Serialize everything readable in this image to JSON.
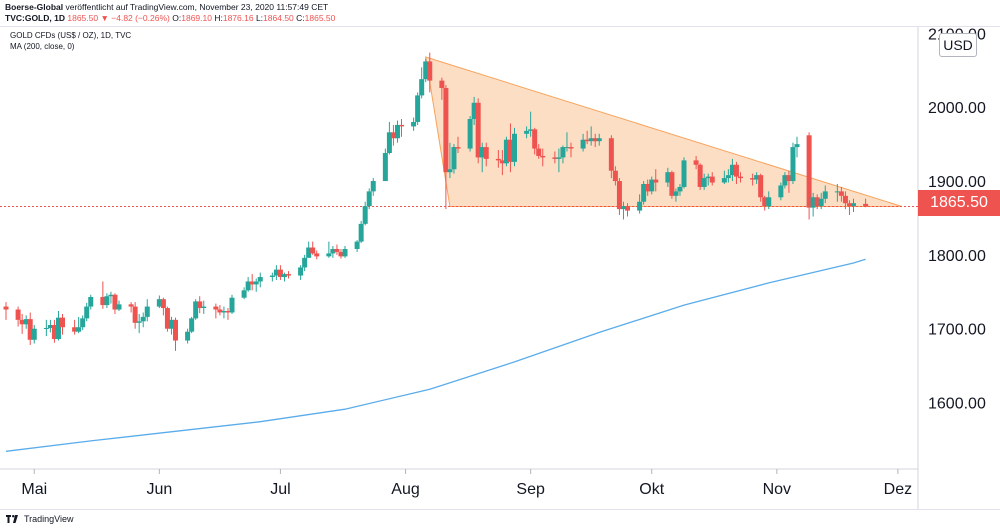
{
  "header": {
    "publisher": "Boerse-Global",
    "published_text": "veröffentlicht auf TradingView.com, November 23, 2020 11:57:49 CET",
    "symbol": "TVC:GOLD, 1D",
    "last": "1865.50",
    "change": "−4.82 (−0.26%)",
    "open_label": "O:",
    "open": "1869.10",
    "high_label": "H:",
    "high": "1876.16",
    "low_label": "L:",
    "low": "1864.50",
    "close_label": "C:",
    "close": "1865.50"
  },
  "legend": {
    "title": "GOLD CFDs (US$ / OZ), 1D, TVC",
    "indicator": "MA (200, close, 0)"
  },
  "currency": "USD",
  "current_price": "1865.50",
  "footer": {
    "brand": "TradingView"
  },
  "colors": {
    "up": "#26a69a",
    "down": "#ef5350",
    "ma": "#5aacea",
    "triangle_fill": "#fbd3b0",
    "triangle_line": "#f7a35c"
  },
  "chart_data": {
    "type": "candlestick",
    "ylim": [
      1510,
      2110
    ],
    "yticks": [
      "1600.00",
      "1700.00",
      "1800.00",
      "1900.00",
      "2000.00",
      "2100.00"
    ],
    "xticks": [
      "Mai",
      "Jun",
      "Jul",
      "Aug",
      "Sep",
      "Okt",
      "Nov",
      "Dez"
    ],
    "x_range": [
      "2020-04-24",
      "2020-12-04"
    ],
    "candles": [
      [
        "2020-04-24",
        1730,
        1736,
        1712,
        1726
      ],
      [
        "2020-04-27",
        1726,
        1730,
        1703,
        1712
      ],
      [
        "2020-04-28",
        1712,
        1720,
        1693,
        1706
      ],
      [
        "2020-04-29",
        1706,
        1718,
        1700,
        1713
      ],
      [
        "2020-04-30",
        1713,
        1722,
        1678,
        1685
      ],
      [
        "2020-05-01",
        1685,
        1705,
        1680,
        1700
      ],
      [
        "2020-05-04",
        1700,
        1712,
        1690,
        1701
      ],
      [
        "2020-05-05",
        1701,
        1712,
        1695,
        1705
      ],
      [
        "2020-05-06",
        1705,
        1712,
        1681,
        1686
      ],
      [
        "2020-05-07",
        1686,
        1724,
        1684,
        1715
      ],
      [
        "2020-05-08",
        1715,
        1720,
        1692,
        1702
      ],
      [
        "2020-05-11",
        1702,
        1712,
        1692,
        1696
      ],
      [
        "2020-05-12",
        1696,
        1716,
        1694,
        1702
      ],
      [
        "2020-05-13",
        1702,
        1718,
        1698,
        1714
      ],
      [
        "2020-05-14",
        1714,
        1735,
        1710,
        1730
      ],
      [
        "2020-05-15",
        1730,
        1746,
        1726,
        1743
      ],
      [
        "2020-05-18",
        1743,
        1764,
        1727,
        1732
      ],
      [
        "2020-05-19",
        1732,
        1748,
        1728,
        1744
      ],
      [
        "2020-05-20",
        1744,
        1750,
        1734,
        1746
      ],
      [
        "2020-05-21",
        1746,
        1748,
        1720,
        1726
      ],
      [
        "2020-05-22",
        1726,
        1738,
        1724,
        1733
      ],
      [
        "2020-05-25",
        1733,
        1736,
        1722,
        1730
      ],
      [
        "2020-05-26",
        1730,
        1736,
        1700,
        1708
      ],
      [
        "2020-05-27",
        1708,
        1720,
        1694,
        1710
      ],
      [
        "2020-05-28",
        1710,
        1722,
        1702,
        1716
      ],
      [
        "2020-05-29",
        1716,
        1740,
        1710,
        1730
      ],
      [
        "2020-06-01",
        1730,
        1745,
        1728,
        1740
      ],
      [
        "2020-06-02",
        1740,
        1742,
        1718,
        1728
      ],
      [
        "2020-06-03",
        1728,
        1730,
        1696,
        1700
      ],
      [
        "2020-06-04",
        1700,
        1716,
        1692,
        1712
      ],
      [
        "2020-06-05",
        1712,
        1715,
        1670,
        1684
      ],
      [
        "2020-06-08",
        1684,
        1700,
        1680,
        1696
      ],
      [
        "2020-06-09",
        1696,
        1716,
        1694,
        1714
      ],
      [
        "2020-06-10",
        1714,
        1740,
        1712,
        1737
      ],
      [
        "2020-06-11",
        1737,
        1744,
        1721,
        1728
      ],
      [
        "2020-06-12",
        1728,
        1738,
        1720,
        1730
      ],
      [
        "2020-06-15",
        1730,
        1734,
        1714,
        1726
      ],
      [
        "2020-06-16",
        1726,
        1732,
        1718,
        1722
      ],
      [
        "2020-06-17",
        1722,
        1730,
        1714,
        1724
      ],
      [
        "2020-06-18",
        1724,
        1728,
        1712,
        1722
      ],
      [
        "2020-06-19",
        1722,
        1746,
        1720,
        1742
      ],
      [
        "2020-06-22",
        1742,
        1756,
        1740,
        1752
      ],
      [
        "2020-06-23",
        1752,
        1770,
        1750,
        1764
      ],
      [
        "2020-06-24",
        1764,
        1774,
        1752,
        1760
      ],
      [
        "2020-06-25",
        1760,
        1768,
        1750,
        1764
      ],
      [
        "2020-06-26",
        1764,
        1776,
        1756,
        1770
      ],
      [
        "2020-06-29",
        1770,
        1776,
        1764,
        1772
      ],
      [
        "2020-06-30",
        1772,
        1786,
        1766,
        1780
      ],
      [
        "2020-07-01",
        1780,
        1786,
        1766,
        1770
      ],
      [
        "2020-07-02",
        1770,
        1776,
        1764,
        1774
      ],
      [
        "2020-07-03",
        1774,
        1778,
        1768,
        1772
      ],
      [
        "2020-07-06",
        1772,
        1786,
        1766,
        1783
      ],
      [
        "2020-07-07",
        1783,
        1800,
        1778,
        1796
      ],
      [
        "2020-07-08",
        1796,
        1818,
        1796,
        1810
      ],
      [
        "2020-07-09",
        1810,
        1818,
        1800,
        1802
      ],
      [
        "2020-07-10",
        1802,
        1806,
        1794,
        1798
      ],
      [
        "2020-07-13",
        1798,
        1818,
        1796,
        1802
      ],
      [
        "2020-07-14",
        1802,
        1812,
        1796,
        1808
      ],
      [
        "2020-07-15",
        1808,
        1814,
        1800,
        1804
      ],
      [
        "2020-07-16",
        1804,
        1808,
        1795,
        1798
      ],
      [
        "2020-07-17",
        1798,
        1812,
        1796,
        1808
      ],
      [
        "2020-07-20",
        1808,
        1820,
        1804,
        1818
      ],
      [
        "2020-07-21",
        1818,
        1846,
        1816,
        1842
      ],
      [
        "2020-07-22",
        1842,
        1872,
        1840,
        1866
      ],
      [
        "2020-07-23",
        1866,
        1890,
        1862,
        1886
      ],
      [
        "2020-07-24",
        1886,
        1904,
        1880,
        1900
      ],
      [
        "2020-07-27",
        1900,
        1944,
        1900,
        1938
      ],
      [
        "2020-07-28",
        1938,
        1980,
        1936,
        1966
      ],
      [
        "2020-07-29",
        1966,
        1976,
        1948,
        1958
      ],
      [
        "2020-07-30",
        1958,
        1982,
        1952,
        1976
      ],
      [
        "2020-07-31",
        1976,
        1984,
        1960,
        1974
      ],
      [
        "2020-08-03",
        1974,
        1986,
        1968,
        1980
      ],
      [
        "2020-08-04",
        1980,
        2020,
        1976,
        2016
      ],
      [
        "2020-08-05",
        2016,
        2054,
        2012,
        2038
      ],
      [
        "2020-08-06",
        2038,
        2066,
        2034,
        2062
      ],
      [
        "2020-08-07",
        2062,
        2074,
        2020,
        2036
      ],
      [
        "2020-08-10",
        2036,
        2040,
        2010,
        2026
      ],
      [
        "2020-08-11",
        2026,
        2030,
        1862,
        1912
      ],
      [
        "2020-08-12",
        1912,
        1952,
        1904,
        1916
      ],
      [
        "2020-08-13",
        1916,
        1950,
        1910,
        1946
      ],
      [
        "2020-08-14",
        1946,
        1960,
        1938,
        1944
      ],
      [
        "2020-08-17",
        1944,
        1988,
        1940,
        1984
      ],
      [
        "2020-08-18",
        1984,
        2014,
        1976,
        2006
      ],
      [
        "2020-08-19",
        2006,
        2012,
        1924,
        1932
      ],
      [
        "2020-08-20",
        1932,
        1952,
        1912,
        1946
      ],
      [
        "2020-08-21",
        1946,
        1952,
        1920,
        1930
      ],
      [
        "2020-08-24",
        1930,
        1942,
        1918,
        1928
      ],
      [
        "2020-08-25",
        1928,
        1942,
        1908,
        1924
      ],
      [
        "2020-08-26",
        1924,
        1960,
        1920,
        1956
      ],
      [
        "2020-08-27",
        1956,
        1978,
        1912,
        1926
      ],
      [
        "2020-08-28",
        1926,
        1972,
        1920,
        1964
      ],
      [
        "2020-08-31",
        1964,
        1974,
        1958,
        1968
      ],
      [
        "2020-09-01",
        1968,
        1994,
        1960,
        1970
      ],
      [
        "2020-09-02",
        1970,
        1972,
        1936,
        1944
      ],
      [
        "2020-09-03",
        1944,
        1950,
        1930,
        1934
      ],
      [
        "2020-09-04",
        1934,
        1944,
        1920,
        1932
      ],
      [
        "2020-09-07",
        1932,
        1940,
        1924,
        1930
      ],
      [
        "2020-09-08",
        1930,
        1944,
        1912,
        1932
      ],
      [
        "2020-09-09",
        1932,
        1948,
        1924,
        1946
      ],
      [
        "2020-09-10",
        1946,
        1966,
        1940,
        1946
      ],
      [
        "2020-09-11",
        1946,
        1952,
        1932,
        1944
      ],
      [
        "2020-09-14",
        1944,
        1964,
        1940,
        1956
      ],
      [
        "2020-09-15",
        1956,
        1968,
        1950,
        1954
      ],
      [
        "2020-09-16",
        1954,
        1974,
        1948,
        1958
      ],
      [
        "2020-09-17",
        1958,
        1964,
        1946,
        1954
      ],
      [
        "2020-09-18",
        1954,
        1964,
        1948,
        1958
      ],
      [
        "2020-09-21",
        1958,
        1962,
        1904,
        1914
      ],
      [
        "2020-09-22",
        1914,
        1920,
        1894,
        1900
      ],
      [
        "2020-09-23",
        1900,
        1904,
        1854,
        1862
      ],
      [
        "2020-09-24",
        1862,
        1872,
        1848,
        1866
      ],
      [
        "2020-09-25",
        1866,
        1870,
        1852,
        1860
      ],
      [
        "2020-09-28",
        1860,
        1882,
        1856,
        1872
      ],
      [
        "2020-09-29",
        1872,
        1900,
        1868,
        1896
      ],
      [
        "2020-09-30",
        1896,
        1902,
        1880,
        1886
      ],
      [
        "2020-10-01",
        1886,
        1906,
        1882,
        1902
      ],
      [
        "2020-10-02",
        1902,
        1916,
        1886,
        1898
      ],
      [
        "2020-10-05",
        1898,
        1918,
        1892,
        1912
      ],
      [
        "2020-10-06",
        1912,
        1914,
        1876,
        1880
      ],
      [
        "2020-10-07",
        1880,
        1890,
        1872,
        1886
      ],
      [
        "2020-10-08",
        1886,
        1896,
        1880,
        1892
      ],
      [
        "2020-10-09",
        1892,
        1932,
        1890,
        1928
      ],
      [
        "2020-10-12",
        1928,
        1934,
        1916,
        1922
      ],
      [
        "2020-10-13",
        1922,
        1924,
        1888,
        1892
      ],
      [
        "2020-10-14",
        1892,
        1910,
        1888,
        1904
      ],
      [
        "2020-10-15",
        1904,
        1910,
        1894,
        1906
      ],
      [
        "2020-10-16",
        1906,
        1912,
        1894,
        1898
      ],
      [
        "2020-10-19",
        1898,
        1914,
        1896,
        1904
      ],
      [
        "2020-10-20",
        1904,
        1916,
        1898,
        1908
      ],
      [
        "2020-10-21",
        1908,
        1930,
        1900,
        1922
      ],
      [
        "2020-10-22",
        1922,
        1926,
        1896,
        1906
      ],
      [
        "2020-10-23",
        1906,
        1912,
        1898,
        1904
      ],
      [
        "2020-10-26",
        1904,
        1910,
        1894,
        1902
      ],
      [
        "2020-10-27",
        1902,
        1912,
        1896,
        1908
      ],
      [
        "2020-10-28",
        1908,
        1910,
        1872,
        1878
      ],
      [
        "2020-10-29",
        1878,
        1880,
        1860,
        1866
      ],
      [
        "2020-10-30",
        1866,
        1886,
        1862,
        1878
      ],
      [
        "2020-11-02",
        1878,
        1898,
        1874,
        1894
      ],
      [
        "2020-11-03",
        1894,
        1912,
        1890,
        1908
      ],
      [
        "2020-11-04",
        1908,
        1914,
        1884,
        1900
      ],
      [
        "2020-11-05",
        1900,
        1952,
        1896,
        1946
      ],
      [
        "2020-11-06",
        1946,
        1960,
        1932,
        1950
      ],
      [
        "2020-11-09",
        1962,
        1966,
        1848,
        1864
      ],
      [
        "2020-11-10",
        1864,
        1884,
        1852,
        1878
      ],
      [
        "2020-11-11",
        1878,
        1882,
        1862,
        1866
      ],
      [
        "2020-11-12",
        1866,
        1884,
        1862,
        1876
      ],
      [
        "2020-11-13",
        1876,
        1894,
        1870,
        1886
      ],
      [
        "2020-11-16",
        1886,
        1896,
        1872,
        1886
      ],
      [
        "2020-11-17",
        1886,
        1892,
        1872,
        1880
      ],
      [
        "2020-11-18",
        1880,
        1886,
        1862,
        1870
      ],
      [
        "2020-11-19",
        1870,
        1874,
        1854,
        1866
      ],
      [
        "2020-11-20",
        1866,
        1876,
        1858,
        1870
      ],
      [
        "2020-11-23",
        1869.1,
        1876.16,
        1864.5,
        1865.5
      ]
    ],
    "ma": [
      [
        "2020-04-24",
        1534
      ],
      [
        "2020-05-15",
        1548
      ],
      [
        "2020-06-05",
        1561
      ],
      [
        "2020-06-26",
        1574
      ],
      [
        "2020-07-17",
        1591
      ],
      [
        "2020-08-07",
        1618
      ],
      [
        "2020-08-28",
        1655
      ],
      [
        "2020-09-18",
        1695
      ],
      [
        "2020-10-09",
        1732
      ],
      [
        "2020-10-30",
        1762
      ],
      [
        "2020-11-20",
        1789
      ],
      [
        "2020-11-23",
        1794
      ]
    ],
    "triangle": [
      [
        "2020-08-06",
        2068
      ],
      [
        "2020-12-02",
        1865.5
      ],
      [
        "2020-08-12",
        1865.5
      ]
    ],
    "price_line": 1865.5
  }
}
